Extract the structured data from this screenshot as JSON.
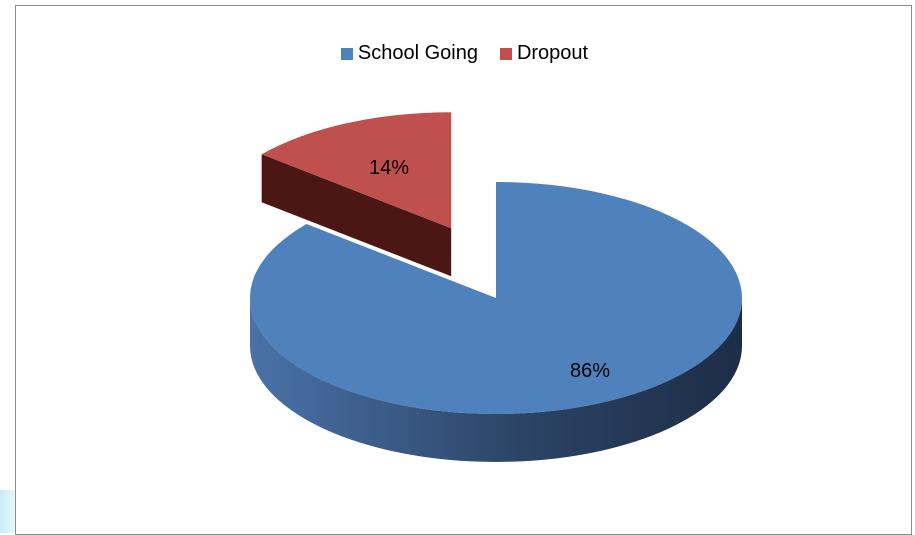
{
  "chart_data": {
    "type": "pie",
    "style": "3d-exploded",
    "categories": [
      "School Going",
      "Dropout"
    ],
    "values": [
      86,
      14
    ],
    "labels": [
      "86%",
      "14%"
    ],
    "colors": [
      "#4f81bd",
      "#c0504d"
    ],
    "legend_position": "top",
    "title": ""
  }
}
